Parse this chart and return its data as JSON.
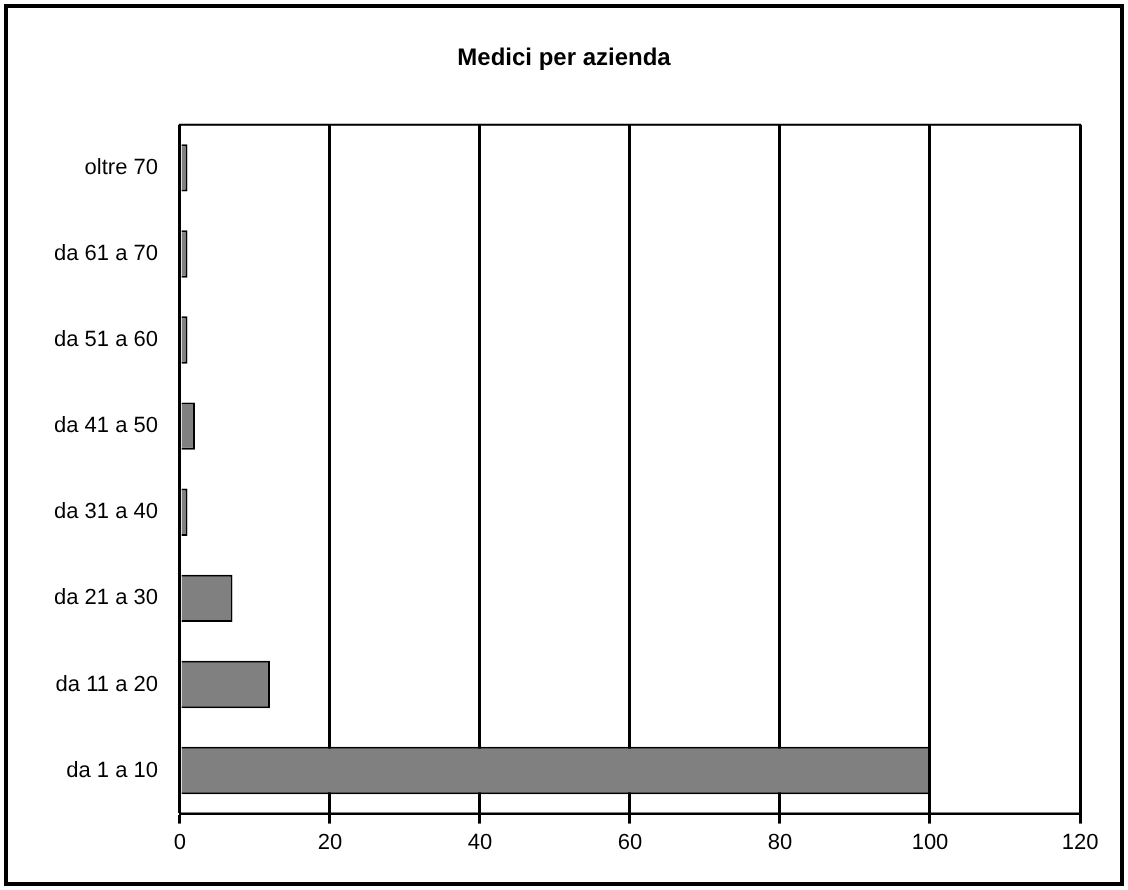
{
  "chart_data": {
    "type": "bar",
    "orientation": "horizontal",
    "title": "Medici per azienda",
    "categories": [
      "oltre 70",
      "da 61 a 70",
      "da 51 a 60",
      "da 41 a 50",
      "da 31 a 40",
      "da 21 a 30",
      "da 11 a 20",
      "da 1 a 10"
    ],
    "values": [
      1,
      1,
      1,
      2,
      1,
      7,
      12,
      100
    ],
    "color": "#808080",
    "xlim": [
      0,
      120
    ],
    "xticks": [
      0,
      20,
      40,
      60,
      80,
      100,
      120
    ],
    "grid": "x",
    "legend": false
  }
}
